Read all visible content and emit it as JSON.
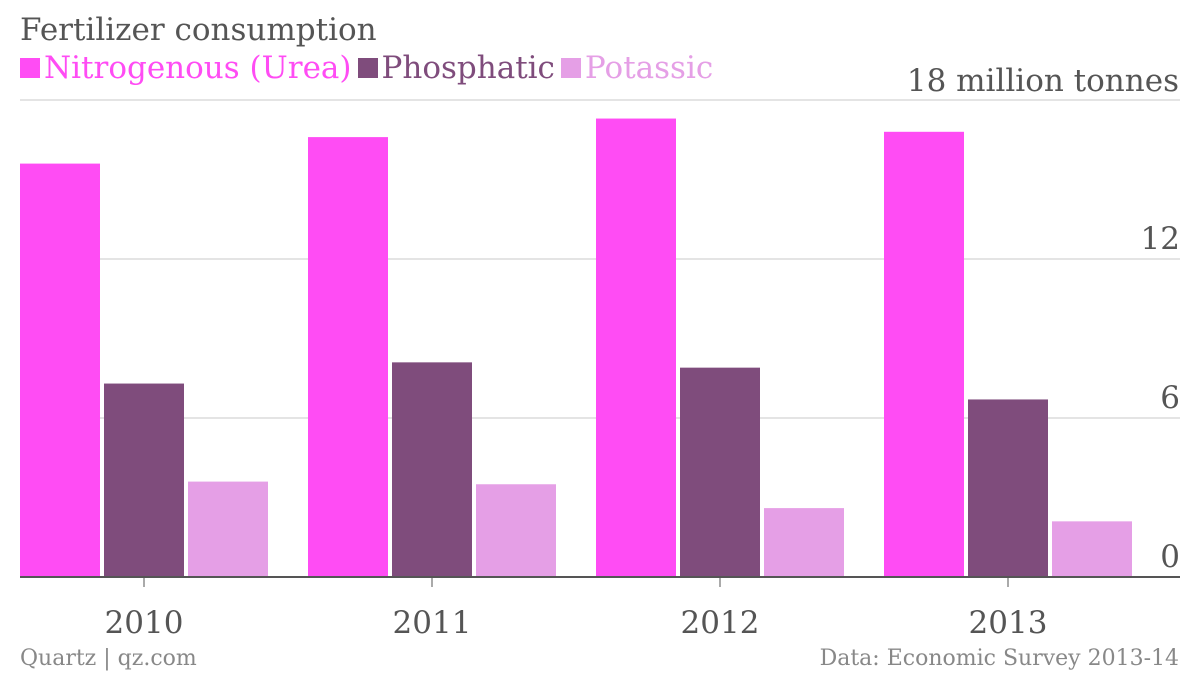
{
  "colors": {
    "nitrogenous": "#ff4cf4",
    "phosphatic": "#7f4c7c",
    "potassic": "#e59fe6",
    "grid": "#e4e4e4",
    "axis": "#555555",
    "text": "#555555",
    "footer": "#888888"
  },
  "footer": {
    "source_left": "Quartz | qz.com",
    "source_right": "Data: Economic Survey 2013-14"
  },
  "chart_data": {
    "type": "bar",
    "title": "Fertilizer consumption",
    "unit_label": "18 million tonnes",
    "categories": [
      "2010",
      "2011",
      "2012",
      "2013"
    ],
    "series": [
      {
        "name": "Nitrogenous (Urea)",
        "color": "#ff4cf4",
        "values": [
          15.6,
          16.6,
          17.3,
          16.8
        ]
      },
      {
        "name": "Phosphatic",
        "color": "#7f4c7c",
        "values": [
          7.3,
          8.1,
          7.9,
          6.7
        ]
      },
      {
        "name": "Potassic",
        "color": "#e59fe6",
        "values": [
          3.6,
          3.5,
          2.6,
          2.1
        ]
      }
    ],
    "ylim": [
      0,
      18
    ],
    "yticks": [
      0,
      6,
      12,
      18
    ],
    "ytick_labels": [
      "0",
      "6",
      "12",
      ""
    ],
    "grid": true,
    "legend_position": "top-left",
    "xlabel": "",
    "ylabel": ""
  }
}
